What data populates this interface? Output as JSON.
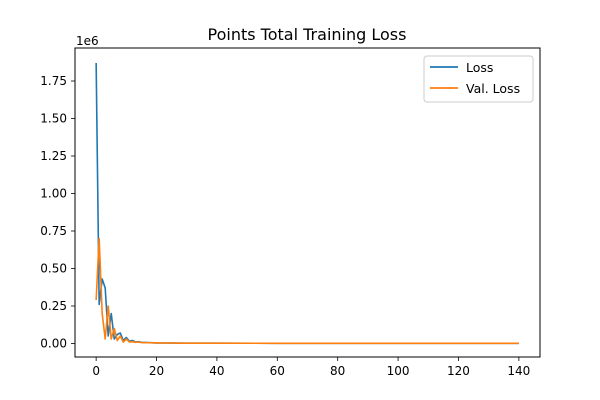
{
  "chart_data": {
    "type": "line",
    "title": "Points Total Training Loss",
    "xlabel": "",
    "ylabel": "",
    "y_offset_label": "1e6",
    "xlim": [
      -7,
      147
    ],
    "ylim": [
      -0.09,
      1.97
    ],
    "x_ticks": [
      0,
      20,
      40,
      60,
      80,
      100,
      120,
      140
    ],
    "x_tick_labels": [
      "0",
      "20",
      "40",
      "60",
      "80",
      "100",
      "120",
      "140"
    ],
    "y_ticks": [
      0,
      0.25,
      0.5,
      0.75,
      1.0,
      1.25,
      1.5,
      1.75
    ],
    "y_tick_labels": [
      "0.00",
      "0.25",
      "0.50",
      "0.75",
      "1.00",
      "1.25",
      "1.50",
      "1.75"
    ],
    "grid": false,
    "legend_position": "top-right",
    "series": [
      {
        "name": "Loss",
        "color": "#1f77b4",
        "x": [
          0,
          1,
          2,
          3,
          4,
          5,
          6,
          7,
          8,
          9,
          10,
          11,
          12,
          13,
          14,
          15,
          17,
          20,
          25,
          30,
          40,
          60,
          80,
          100,
          120,
          140
        ],
        "y": [
          1.87,
          0.26,
          0.43,
          0.37,
          0.05,
          0.2,
          0.03,
          0.06,
          0.07,
          0.02,
          0.04,
          0.015,
          0.02,
          0.01,
          0.012,
          0.008,
          0.006,
          0.004,
          0.003,
          0.002,
          0.002,
          0.0015,
          0.0012,
          0.001,
          0.001,
          0.001
        ]
      },
      {
        "name": "Val. Loss",
        "color": "#ff7f0e",
        "x": [
          0,
          1,
          2,
          3,
          4,
          5,
          6,
          7,
          8,
          9,
          10,
          11,
          12,
          13,
          14,
          15,
          17,
          20,
          25,
          30,
          40,
          60,
          80,
          100,
          120,
          140
        ],
        "y": [
          0.29,
          0.7,
          0.2,
          0.03,
          0.25,
          0.03,
          0.1,
          0.02,
          0.05,
          0.01,
          0.03,
          0.01,
          0.012,
          0.008,
          0.01,
          0.006,
          0.005,
          0.004,
          0.003,
          0.002,
          0.002,
          0.0015,
          0.0012,
          0.001,
          0.001,
          0.001
        ]
      }
    ]
  }
}
